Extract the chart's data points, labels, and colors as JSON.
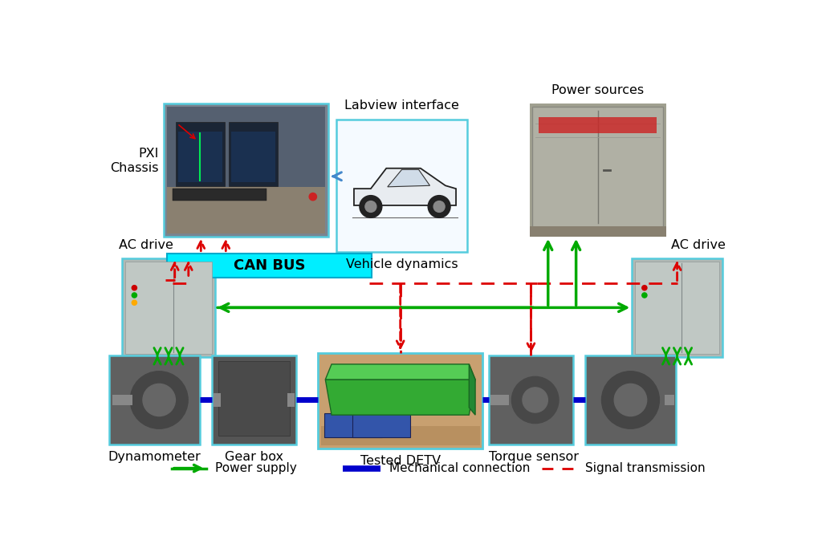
{
  "bg_color": "#ffffff",
  "canbus_color": "#00eeff",
  "canbus_label": "CAN BUS",
  "green_color": "#00aa00",
  "blue_color": "#0000cc",
  "red_color": "#dd0000",
  "box_border_color": "#55ccdd",
  "labels": {
    "pxi": "PXI\nChassis",
    "labview": "Labview interface",
    "vehicle": "Vehicle dynamics",
    "power_sources": "Power sources",
    "ac_drive_left": "AC drive",
    "ac_drive_right": "AC drive",
    "dynamometer": "Dynamometer",
    "gearbox": "Gear box",
    "tested_detv": "Tested DETV",
    "torque_sensor": "Torque sensor"
  },
  "legend": {
    "power_supply": "Power supply",
    "mechanical": "Mechanical connection",
    "signal": "Signal transmission"
  },
  "boxes": {
    "pxi": [
      0.97,
      3.95,
      2.65,
      2.15
    ],
    "labview": [
      3.75,
      3.7,
      2.1,
      2.15
    ],
    "power": [
      6.85,
      3.95,
      2.2,
      2.15
    ],
    "canbus": [
      1.02,
      3.28,
      3.3,
      0.4
    ],
    "lac": [
      0.3,
      2.0,
      1.5,
      1.6
    ],
    "rac": [
      8.5,
      2.0,
      1.45,
      1.6
    ],
    "dyn": [
      0.1,
      0.58,
      1.45,
      1.45
    ],
    "gb": [
      1.75,
      0.58,
      1.35,
      1.45
    ],
    "detv": [
      3.45,
      0.52,
      2.65,
      1.55
    ],
    "ts": [
      6.2,
      0.58,
      1.35,
      1.45
    ],
    "rd": [
      7.75,
      0.58,
      1.45,
      1.45
    ]
  }
}
